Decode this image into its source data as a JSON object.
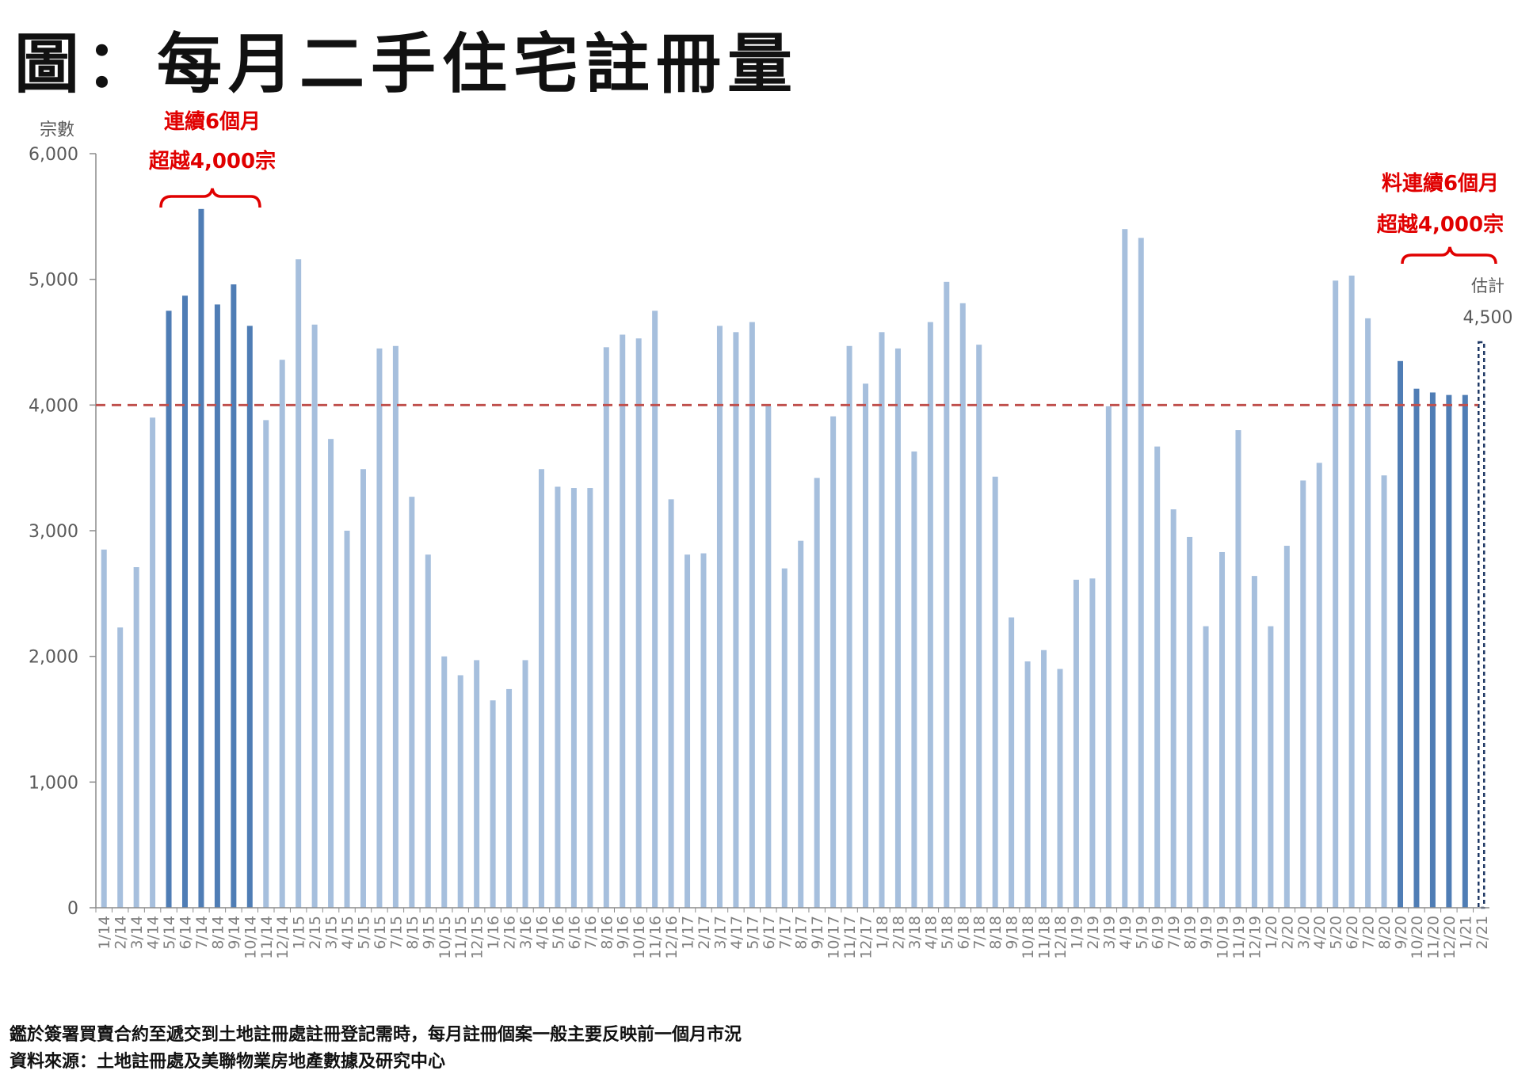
{
  "title": "圖：每月二手住宅註冊量",
  "footnotes": {
    "note": "鑑於簽署買賣合約至遞交到土地註冊處註冊登記需時，每月註冊個案一般主要反映前一個月市況",
    "source": "資料來源：土地註冊處及美聯物業房地產數據及研究中心"
  },
  "annotations": {
    "left_line1": "連續6個月",
    "left_line2": "超越4,000宗",
    "right_line1": "料連續6個月",
    "right_line2": "超越4,000宗",
    "estimate_label": "估計",
    "estimate_value": "4,500"
  },
  "colors": {
    "bar_light": "#a6bfdd",
    "bar_dark": "#4f7db5",
    "threshold_line": "#c0504d",
    "annotation": "#e00000",
    "axis": "#8c8c8c"
  },
  "chart_data": {
    "type": "bar",
    "ylabel": "宗數",
    "ylim": [
      0,
      6000
    ],
    "yticks": [
      0,
      1000,
      2000,
      3000,
      4000,
      5000,
      6000
    ],
    "ytick_labels": [
      "0",
      "1,000",
      "2,000",
      "3,000",
      "4,000",
      "5,000",
      "6,000"
    ],
    "threshold": 4000,
    "categories": [
      "1/14",
      "2/14",
      "3/14",
      "4/14",
      "5/14",
      "6/14",
      "7/14",
      "8/14",
      "9/14",
      "10/14",
      "11/14",
      "12/14",
      "1/15",
      "2/15",
      "3/15",
      "4/15",
      "5/15",
      "6/15",
      "7/15",
      "8/15",
      "9/15",
      "10/15",
      "11/15",
      "12/15",
      "1/16",
      "2/16",
      "3/16",
      "4/16",
      "5/16",
      "6/16",
      "7/16",
      "8/16",
      "9/16",
      "10/16",
      "11/16",
      "12/16",
      "1/17",
      "2/17",
      "3/17",
      "4/17",
      "5/17",
      "6/17",
      "7/17",
      "8/17",
      "9/17",
      "10/17",
      "11/17",
      "12/17",
      "1/18",
      "2/18",
      "3/18",
      "4/18",
      "5/18",
      "6/18",
      "7/18",
      "8/18",
      "9/18",
      "10/18",
      "11/18",
      "12/18",
      "1/19",
      "2/19",
      "3/19",
      "4/19",
      "5/19",
      "6/19",
      "7/19",
      "8/19",
      "9/19",
      "10/19",
      "11/19",
      "12/19",
      "1/20",
      "2/20",
      "3/20",
      "4/20",
      "5/20",
      "6/20",
      "7/20",
      "8/20",
      "9/20",
      "10/20",
      "11/20",
      "12/20",
      "1/21",
      "2/21"
    ],
    "values": [
      2850,
      2230,
      2710,
      3900,
      4750,
      4870,
      5560,
      4800,
      4960,
      4630,
      3880,
      4360,
      5160,
      4640,
      3730,
      3000,
      3490,
      4450,
      4470,
      3270,
      2810,
      2000,
      1850,
      1970,
      1650,
      1740,
      1970,
      3490,
      3350,
      3340,
      3340,
      4460,
      4560,
      4530,
      4750,
      3250,
      2810,
      2820,
      4630,
      4580,
      4660,
      3990,
      2700,
      2920,
      3420,
      3910,
      4470,
      4170,
      4580,
      4450,
      3630,
      4660,
      4980,
      4810,
      4480,
      3430,
      2310,
      1960,
      2050,
      1900,
      2610,
      2620,
      3990,
      5400,
      5330,
      3670,
      3170,
      2950,
      2240,
      2830,
      3800,
      2640,
      2240,
      2880,
      3400,
      3540,
      4990,
      5030,
      4690,
      3440,
      4350,
      4130,
      4100,
      4080,
      4080,
      4500
    ],
    "highlight": [
      false,
      false,
      false,
      false,
      true,
      true,
      true,
      true,
      true,
      true,
      false,
      false,
      false,
      false,
      false,
      false,
      false,
      false,
      false,
      false,
      false,
      false,
      false,
      false,
      false,
      false,
      false,
      false,
      false,
      false,
      false,
      false,
      false,
      false,
      false,
      false,
      false,
      false,
      false,
      false,
      false,
      false,
      false,
      false,
      false,
      false,
      false,
      false,
      false,
      false,
      false,
      false,
      false,
      false,
      false,
      false,
      false,
      false,
      false,
      false,
      false,
      false,
      false,
      false,
      false,
      false,
      false,
      false,
      false,
      false,
      false,
      false,
      false,
      false,
      false,
      false,
      false,
      false,
      false,
      false,
      true,
      true,
      true,
      true,
      true,
      false
    ],
    "estimated": [
      false,
      false,
      false,
      false,
      false,
      false,
      false,
      false,
      false,
      false,
      false,
      false,
      false,
      false,
      false,
      false,
      false,
      false,
      false,
      false,
      false,
      false,
      false,
      false,
      false,
      false,
      false,
      false,
      false,
      false,
      false,
      false,
      false,
      false,
      false,
      false,
      false,
      false,
      false,
      false,
      false,
      false,
      false,
      false,
      false,
      false,
      false,
      false,
      false,
      false,
      false,
      false,
      false,
      false,
      false,
      false,
      false,
      false,
      false,
      false,
      false,
      false,
      false,
      false,
      false,
      false,
      false,
      false,
      false,
      false,
      false,
      false,
      false,
      false,
      false,
      false,
      false,
      false,
      false,
      false,
      false,
      false,
      false,
      false,
      false,
      true
    ]
  }
}
